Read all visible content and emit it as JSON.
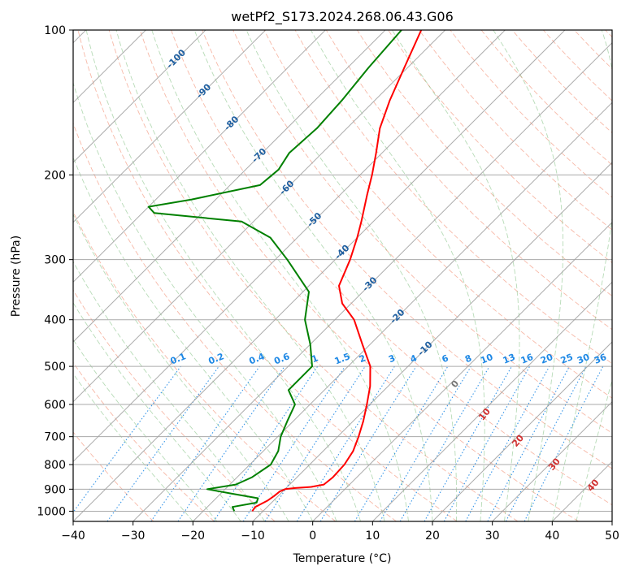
{
  "chart_data": {
    "type": "line",
    "subtype": "skew-t log-p",
    "title": "wetPf2_S173.2024.268.06.43.G06",
    "xlabel": "Temperature (°C)",
    "ylabel": "Pressure (hPa)",
    "xlim": [
      -40,
      50
    ],
    "ylim": [
      1050,
      100
    ],
    "y_scale": "log",
    "grid": true,
    "x_ticks": [
      -40,
      -30,
      -20,
      -10,
      0,
      10,
      20,
      30,
      40,
      50
    ],
    "y_ticks": [
      100,
      200,
      300,
      400,
      500,
      600,
      700,
      800,
      900,
      1000
    ],
    "colors": {
      "temperature": "#ff0000",
      "dewpoint": "#008000",
      "isotherm": "#9e9e9e",
      "dry_adiabat": "#f08060",
      "moist_adiabat": "#60b060",
      "mixing_ratio": "#1e88e5",
      "isotherm_label": "#1f5fa0",
      "moist_label": "#d03030"
    },
    "series": [
      {
        "key": "temperature",
        "points": [
          [
            1000,
            -11.8
          ],
          [
            980,
            -12.0
          ],
          [
            950,
            -11.0
          ],
          [
            930,
            -10.7
          ],
          [
            910,
            -10.5
          ],
          [
            900,
            -10.0
          ],
          [
            895,
            -8.5
          ],
          [
            890,
            -6.0
          ],
          [
            880,
            -4.3
          ],
          [
            850,
            -4.0
          ],
          [
            800,
            -4.2
          ],
          [
            750,
            -5.0
          ],
          [
            700,
            -6.5
          ],
          [
            650,
            -8.3
          ],
          [
            600,
            -10.5
          ],
          [
            550,
            -13.0
          ],
          [
            500,
            -16.3
          ],
          [
            450,
            -21.3
          ],
          [
            400,
            -26.8
          ],
          [
            370,
            -31.5
          ],
          [
            340,
            -35.0
          ],
          [
            300,
            -37.5
          ],
          [
            270,
            -40.0
          ],
          [
            250,
            -42.0
          ],
          [
            220,
            -45.5
          ],
          [
            200,
            -48.0
          ],
          [
            180,
            -51.0
          ],
          [
            160,
            -54.5
          ],
          [
            140,
            -57.5
          ],
          [
            120,
            -60.5
          ],
          [
            100,
            -64.0
          ]
        ]
      },
      {
        "key": "dewpoint",
        "points": [
          [
            1000,
            -14.8
          ],
          [
            980,
            -15.8
          ],
          [
            960,
            -12.5
          ],
          [
            940,
            -13.0
          ],
          [
            920,
            -18.0
          ],
          [
            900,
            -23.0
          ],
          [
            880,
            -19.0
          ],
          [
            850,
            -17.5
          ],
          [
            800,
            -16.5
          ],
          [
            750,
            -17.5
          ],
          [
            700,
            -19.5
          ],
          [
            650,
            -21.0
          ],
          [
            600,
            -22.5
          ],
          [
            560,
            -26.0
          ],
          [
            500,
            -26.0
          ],
          [
            450,
            -30.0
          ],
          [
            400,
            -35.0
          ],
          [
            350,
            -39.0
          ],
          [
            300,
            -48.0
          ],
          [
            270,
            -54.5
          ],
          [
            250,
            -62.0
          ],
          [
            240,
            -78.0
          ],
          [
            233,
            -80.0
          ],
          [
            225,
            -74.0
          ],
          [
            210,
            -65.0
          ],
          [
            195,
            -64.5
          ],
          [
            180,
            -65.5
          ],
          [
            160,
            -65.0
          ],
          [
            140,
            -65.5
          ],
          [
            120,
            -66.5
          ],
          [
            100,
            -67.3
          ]
        ]
      }
    ],
    "isotherm_labels": [
      "-100",
      "-90",
      "-80",
      "-70",
      "-60",
      "-50",
      "-40",
      "-30",
      "-20",
      "-10"
    ],
    "isotherm_label_values": [
      -100,
      -90,
      -80,
      -70,
      -60,
      -50,
      -40,
      -30,
      -20,
      -10
    ],
    "mixing_ratio_labels": [
      "0.1",
      "0.2",
      "0.4",
      "0.6",
      "1",
      "1.5",
      "2",
      "3",
      "4",
      "6",
      "8",
      "10",
      "13",
      "16",
      "20",
      "25",
      "30",
      "36"
    ],
    "mixing_ratio_label_values": [
      0.1,
      0.2,
      0.4,
      0.6,
      1,
      1.5,
      2,
      3,
      4,
      6,
      8,
      10,
      13,
      16,
      20,
      25,
      30,
      36
    ],
    "moist_adiabat_labels": [
      "0",
      "10",
      "20",
      "30",
      "40"
    ],
    "moist_adiabat_label_values": [
      0,
      10,
      20,
      30,
      40
    ]
  }
}
